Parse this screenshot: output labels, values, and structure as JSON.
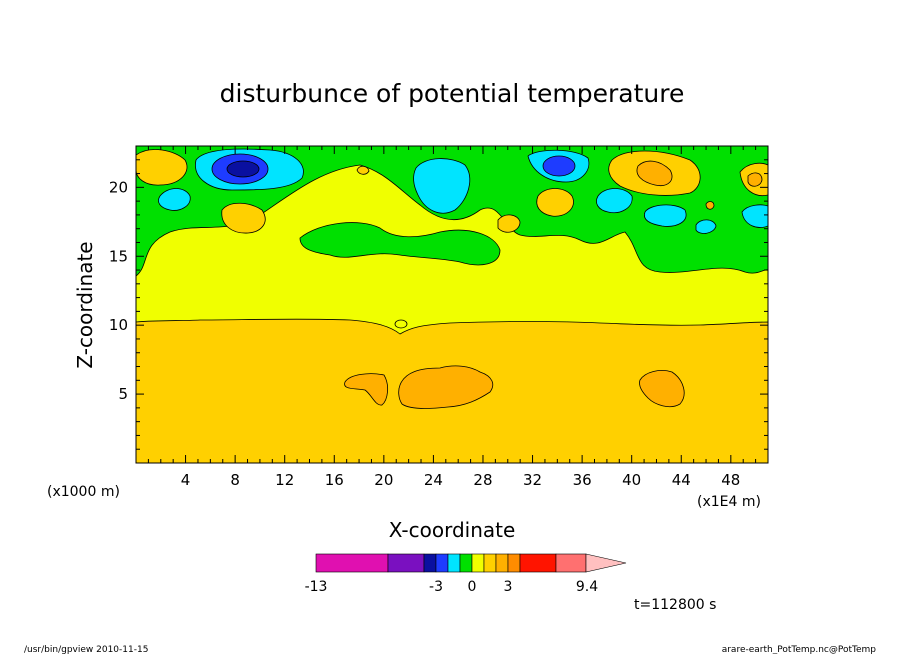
{
  "chart_data": {
    "type": "heatmap",
    "title": "disturbunce of potential temperature",
    "xlabel": "X-coordinate",
    "ylabel": "Z-coordinate",
    "x_unit_left": "(x1000 m)",
    "x_unit_right": "(x1E4 m)",
    "xlim": [
      0,
      51
    ],
    "ylim": [
      0,
      23
    ],
    "x_ticks": [
      4,
      8,
      12,
      16,
      20,
      24,
      28,
      32,
      36,
      40,
      44,
      48
    ],
    "y_ticks": [
      5,
      10,
      15,
      20
    ],
    "time_label": "t=112800 s",
    "colorbar": {
      "labels": [
        "-13",
        "-3",
        "0",
        "3",
        "9.4"
      ],
      "bins": [
        {
          "color": "#e010b0"
        },
        {
          "color": "#7a10c0"
        },
        {
          "color": "#0a10a0"
        },
        {
          "color": "#1e3cff"
        },
        {
          "color": "#00e4ff"
        },
        {
          "color": "#00e000"
        },
        {
          "color": "#f0ff00"
        },
        {
          "color": "#ffd000"
        },
        {
          "color": "#ffb000"
        },
        {
          "color": "#ff8c00"
        },
        {
          "color": "#ff1400"
        },
        {
          "color": "#ff7070"
        },
        {
          "color": "#ffc0c0"
        }
      ]
    },
    "regions": [
      {
        "level": "0.5",
        "color": "#ffd000",
        "desc": "lower layer z 0-10"
      },
      {
        "level": "0",
        "color": "#f0ff00",
        "desc": "middle layer z 10-15"
      },
      {
        "level": "-0.5",
        "color": "#00e000",
        "desc": "upper layer z 15-23"
      },
      {
        "level": "1",
        "color": "#ffb000",
        "desc": "blobs near z 5-6 at x 17-19, 22-29, 41-44"
      },
      {
        "level": "-1",
        "color": "#00e4ff",
        "desc": "cyan cells in upper layer"
      },
      {
        "level": "-2",
        "color": "#1e3cff",
        "desc": "blue cells near x 8-9 and x 34, z 21"
      },
      {
        "level": "-3",
        "color": "#0a10a0",
        "desc": "core of cell near x 8.5, z 21"
      }
    ]
  },
  "footer": {
    "left": "/usr/bin/gpview   2010-11-15",
    "right": "arare-earth_PotTemp.nc@PotTemp"
  }
}
